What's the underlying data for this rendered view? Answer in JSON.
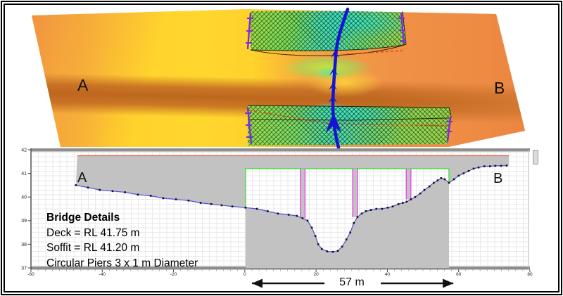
{
  "plan_view": {
    "label_a": "A",
    "label_b": "B",
    "colors": {
      "raster_yellow": "#FFD12B",
      "raster_orange": "#EF8F44",
      "channel_band_brown": "#BD671F",
      "hatch_green": "#6FDE6E",
      "hatch_cyan": "#3AE2C6",
      "centerline_blue": "#1414D2",
      "edge_purple": "#7C2ED6",
      "dashed_red": "#E8380D"
    }
  },
  "section_panel": {
    "label_a": "A",
    "label_b": "B",
    "bridge_details": {
      "title": "Bridge Details",
      "lines": [
        "Deck = RL 41.75 m",
        "Soffit = RL 41.20 m",
        "Circular Piers 3 x 1 m Diameter"
      ]
    },
    "span_label": "57 m"
  },
  "chart_data": {
    "type": "line",
    "xlim": [
      -60,
      80
    ],
    "ylim": [
      37,
      42
    ],
    "x_ticks": [
      -60,
      -40,
      -20,
      0,
      20,
      40,
      60,
      80
    ],
    "y_ticks": [
      37,
      38,
      39,
      40,
      41,
      42
    ],
    "grid": true,
    "deck_rl": 41.75,
    "soffit_rl": 41.2,
    "deck_extent": [
      -47,
      74.1
    ],
    "opening_extent": [
      0.2,
      57.3
    ],
    "opening_base_rl": [
      39.55,
      40.6
    ],
    "piers": [
      {
        "from": 15.6,
        "to": 16.9,
        "base_rl": 39.1
      },
      {
        "from": 30.3,
        "to": 31.6,
        "base_rl": 39.15
      },
      {
        "from": 45.3,
        "to": 46.6,
        "base_rl": 39.9
      }
    ],
    "span_arrow": {
      "from": 2,
      "to": 58.5,
      "label": "57 m"
    },
    "colors": {
      "terrain_gray": "#C2C2C2",
      "deck_line_red": "#E8604A",
      "opening_green": "#52DC52",
      "pier_magenta": "#EE44EE",
      "ground_line_blue": "#5050E0",
      "marker_black": "#111111"
    },
    "ground_profile": [
      [
        -47.4,
        40.5
      ],
      [
        -44,
        40.4
      ],
      [
        -40.7,
        40.3
      ],
      [
        -37.1,
        40.25
      ],
      [
        -33.6,
        40.2
      ],
      [
        -30,
        40.1
      ],
      [
        -26.4,
        40.05
      ],
      [
        -22.9,
        39.95
      ],
      [
        -19.3,
        39.9
      ],
      [
        -15.8,
        39.85
      ],
      [
        -12.4,
        39.75
      ],
      [
        -9.4,
        39.7
      ],
      [
        -6.5,
        39.65
      ],
      [
        -3.5,
        39.6
      ],
      [
        0.2,
        39.55
      ],
      [
        3.4,
        39.5
      ],
      [
        6.4,
        39.4
      ],
      [
        9.3,
        39.3
      ],
      [
        12.3,
        39.25
      ],
      [
        14.6,
        39.2
      ],
      [
        16.2,
        39.1
      ],
      [
        17.6,
        39.0
      ],
      [
        18.8,
        38.7
      ],
      [
        19.8,
        38.35
      ],
      [
        20.6,
        38.0
      ],
      [
        21.6,
        37.8
      ],
      [
        23.1,
        37.7
      ],
      [
        24.7,
        37.68
      ],
      [
        26.1,
        37.72
      ],
      [
        27.3,
        37.9
      ],
      [
        28.5,
        38.2
      ],
      [
        29.6,
        38.5
      ],
      [
        30.6,
        38.9
      ],
      [
        31.6,
        39.15
      ],
      [
        32.8,
        39.3
      ],
      [
        34,
        39.4
      ],
      [
        35.4,
        39.45
      ],
      [
        36.9,
        39.5
      ],
      [
        38.5,
        39.5
      ],
      [
        40.1,
        39.55
      ],
      [
        41.5,
        39.6
      ],
      [
        43.1,
        39.7
      ],
      [
        44.3,
        39.75
      ],
      [
        45.4,
        39.8
      ],
      [
        46.6,
        39.9
      ],
      [
        47.8,
        40.0
      ],
      [
        49.2,
        40.15
      ],
      [
        50.4,
        40.3
      ],
      [
        51.8,
        40.45
      ],
      [
        53,
        40.6
      ],
      [
        54.1,
        40.7
      ],
      [
        55.1,
        40.8
      ],
      [
        56.1,
        40.75
      ],
      [
        57.3,
        40.6
      ],
      [
        58.7,
        40.75
      ],
      [
        60,
        40.9
      ],
      [
        61.4,
        41.0
      ],
      [
        62.8,
        41.1
      ],
      [
        64.2,
        41.2
      ],
      [
        65.6,
        41.25
      ],
      [
        67.2,
        41.3
      ],
      [
        68.8,
        41.3
      ],
      [
        70.3,
        41.32
      ],
      [
        71.9,
        41.32
      ],
      [
        73.5,
        41.33
      ]
    ]
  }
}
